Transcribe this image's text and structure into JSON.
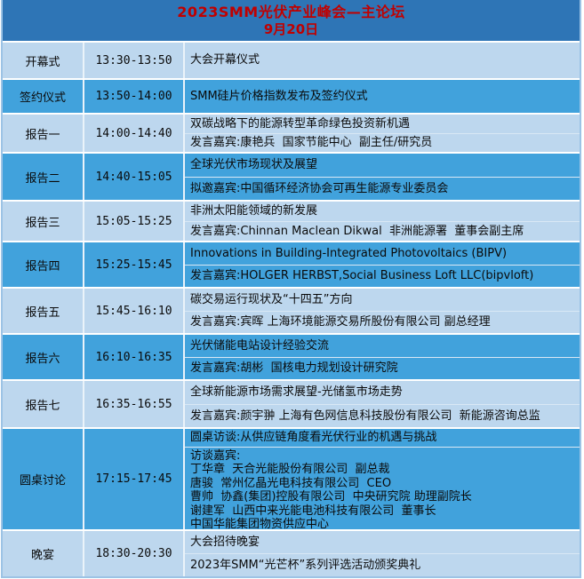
{
  "header": {
    "title": "2023SMM光伏产业峰会—主论坛",
    "date": "9月20日"
  },
  "colors": {
    "header_bg": "#2E75B6",
    "header_text": "#C00000",
    "row_light": "#BDD7EE",
    "row_dark": "#41A2DC",
    "text": "#000000"
  },
  "rows": [
    {
      "label": "开幕式",
      "time": "13:30-13:50",
      "shade": "light",
      "items": [
        [
          "大会开幕仪式"
        ]
      ]
    },
    {
      "label": "签约仪式",
      "time": "13:50-14:00",
      "shade": "dark",
      "items": [
        [
          "SMM硅片价格指数发布及签约仪式"
        ]
      ]
    },
    {
      "label": "报告一",
      "time": "14:00-14:40",
      "shade": "light",
      "items": [
        [
          "双碳战略下的能源转型革命绿色投资新机遇"
        ],
        [
          "发言嘉宾:康艳兵  国家节能中心  副主任/研究员"
        ]
      ]
    },
    {
      "label": "报告二",
      "time": "14:40-15:05",
      "shade": "dark",
      "items": [
        [
          "全球光伏市场现状及展望"
        ],
        [
          "拟邀嘉宾:中国循环经济协会可再生能源专业委员会"
        ]
      ]
    },
    {
      "label": "报告三",
      "time": "15:05-15:25",
      "shade": "light",
      "items": [
        [
          "非洲太阳能领域的新发展"
        ],
        [
          "发言嘉宾:Chinnan Maclean Dikwal  非洲能源署  董事会副主席"
        ]
      ]
    },
    {
      "label": "报告四",
      "time": "15:25-15:45",
      "shade": "dark",
      "items": [
        [
          "Innovations in Building-Integrated Photovoltaics (BIPV)"
        ],
        [
          "发言嘉宾:HOLGER HERBST,Social Business Loft LLC(bipvloft)"
        ]
      ]
    },
    {
      "label": "报告五",
      "time": "15:45-16:10",
      "shade": "light",
      "items": [
        [
          "碳交易运行现状及“十四五”方向"
        ],
        [
          "发言嘉宾:宾晖 上海环境能源交易所股份有限公司 副总经理"
        ]
      ]
    },
    {
      "label": "报告六",
      "time": "16:10-16:35",
      "shade": "dark",
      "items": [
        [
          "光伏储能电站设计经验交流"
        ],
        [
          "发言嘉宾:胡彬  国核电力规划设计研究院"
        ]
      ]
    },
    {
      "label": "报告七",
      "time": "16:35-16:55",
      "shade": "light",
      "items": [
        [
          "全球新能源市场需求展望-光储氢市场走势"
        ],
        [
          "发言嘉宾:颜宇翀 上海有色网信息科技股份有限公司  新能源咨询总监"
        ]
      ]
    },
    {
      "label": "圆桌讨论",
      "time": "17:15-17:45",
      "shade": "dark",
      "items": [
        [
          "圆桌访谈:从供应链角度看光伏行业的机遇与挑战"
        ],
        [
          "访谈嘉宾:",
          "丁华章  天合光能股份有限公司  副总裁",
          "唐骏  常州亿晶光电科技有限公司  CEO",
          "曹帅  协鑫(集团)控股有限公司  中央研究院 助理副院长",
          "谢建军  山西中来光能电池科技有限公司  董事长",
          "中国华能集团物资供应中心"
        ]
      ]
    },
    {
      "label": "晚宴",
      "time": "18:30-20:30",
      "shade": "light",
      "items": [
        [
          "大会招待晚宴"
        ],
        [
          "2023年SMM“光芒杯”系列评选活动颁奖典礼"
        ]
      ]
    }
  ]
}
